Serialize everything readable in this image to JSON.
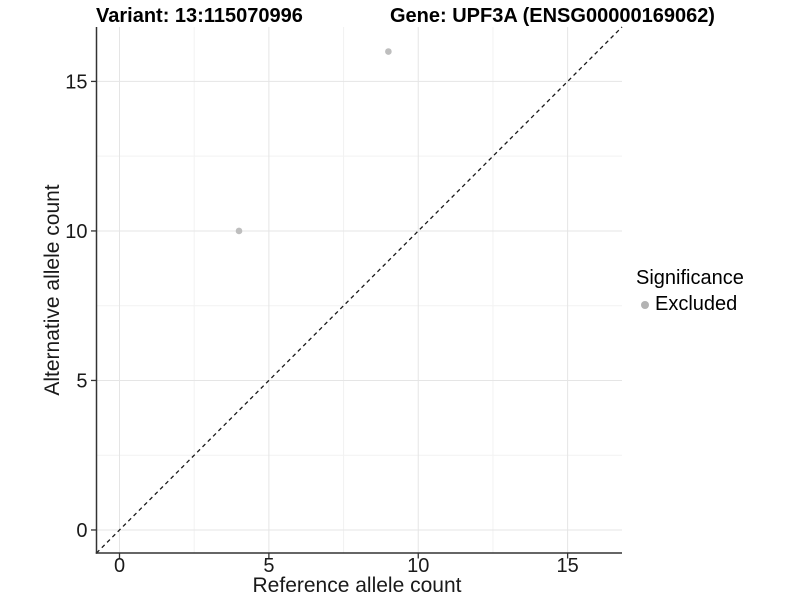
{
  "chart_data": {
    "type": "scatter",
    "title_left": "Variant: 13:115070996",
    "title_right": "Gene: UPF3A (ENSG00000169062)",
    "xlabel": "Reference allele count",
    "ylabel": "Alternative allele count",
    "xlim": [
      -0.77,
      16.82
    ],
    "ylim": [
      -0.77,
      16.82
    ],
    "x_ticks": [
      0,
      5,
      10,
      15
    ],
    "y_ticks": [
      0,
      5,
      10,
      15
    ],
    "x_minor_ticks": [
      2.5,
      7.5,
      12.5
    ],
    "y_minor_ticks": [
      2.5,
      7.5,
      12.5
    ],
    "grid": "major+minor",
    "identity_line": {
      "style": "dashed",
      "from": [
        -0.77,
        -0.77
      ],
      "to": [
        16.82,
        16.82
      ]
    },
    "series": [
      {
        "name": "Excluded",
        "color": "#bebebe",
        "points": [
          {
            "x": 4,
            "y": 10
          },
          {
            "x": 9,
            "y": 16
          }
        ]
      }
    ],
    "legend": {
      "title": "Significance",
      "position": "right",
      "items": [
        {
          "label": "Excluded",
          "color": "#b3b3b3"
        }
      ]
    },
    "colors": {
      "background": "#ffffff",
      "grid_major": "#e5e5e5",
      "grid_minor": "#f2f2f2",
      "axis_line": "#333333",
      "tick_mark": "#333333",
      "tick_label": "#1a1a1a",
      "dashed_line": "#1a1a1a"
    }
  }
}
